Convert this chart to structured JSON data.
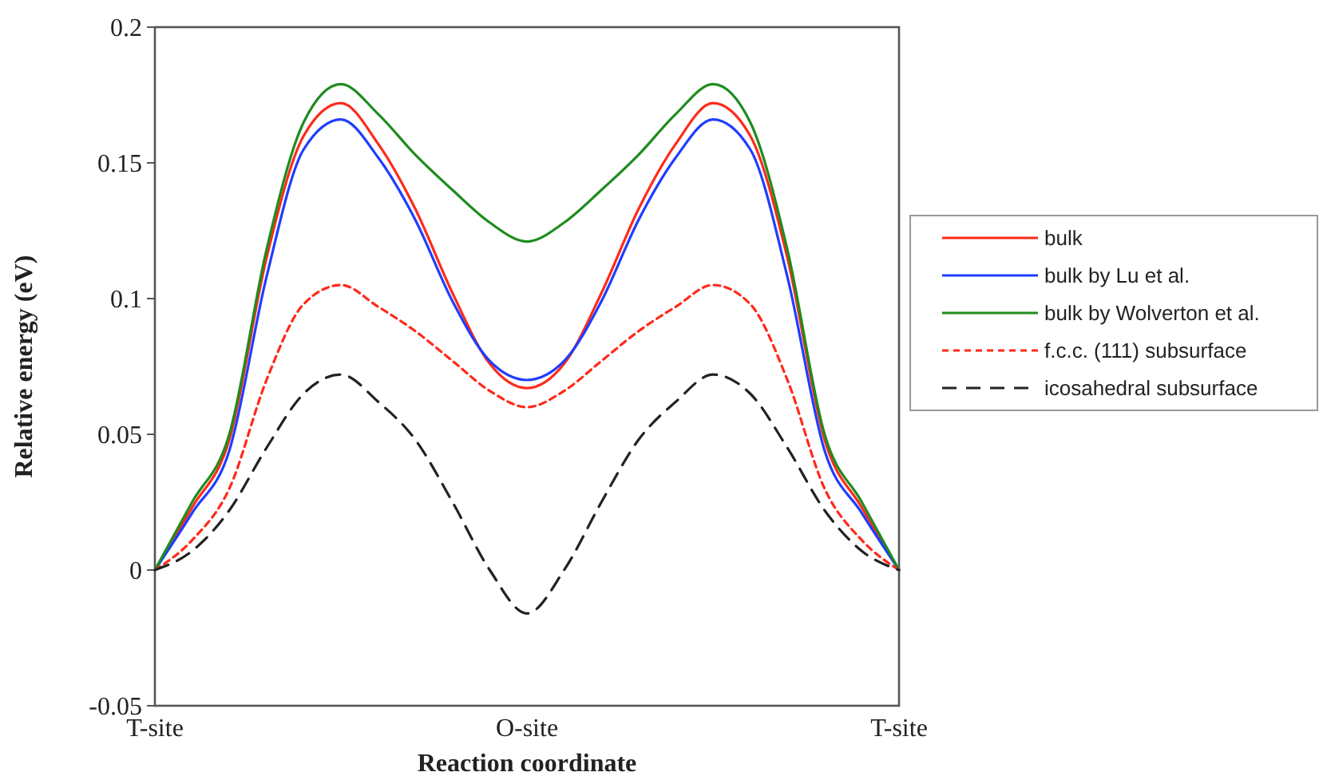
{
  "chart_data": {
    "type": "line",
    "xlabel": "Reaction coordinate",
    "ylabel": "Relative energy (eV)",
    "categories": [
      "T-site",
      null,
      null,
      null,
      null,
      null,
      null,
      null,
      null,
      null,
      "O-site",
      null,
      null,
      null,
      null,
      null,
      null,
      null,
      null,
      null,
      "T-site"
    ],
    "ylim": [
      -0.05,
      0.2
    ],
    "yticks": [
      -0.05,
      0,
      0.05,
      0.1,
      0.15,
      0.2
    ],
    "legend": "right",
    "marker": "none",
    "series": [
      {
        "name": "bulk",
        "color": "#ff2a1a",
        "line_style": "solid",
        "values": [
          0,
          0.023,
          0.048,
          0.115,
          0.16,
          0.172,
          0.157,
          0.133,
          0.102,
          0.076,
          0.067,
          0.076,
          0.102,
          0.133,
          0.157,
          0.172,
          0.16,
          0.115,
          0.048,
          0.023,
          0
        ]
      },
      {
        "name": "bulk by Lu et al.",
        "color": "#1f3dff",
        "line_style": "solid",
        "values": [
          0,
          0.021,
          0.044,
          0.108,
          0.155,
          0.166,
          0.152,
          0.129,
          0.099,
          0.077,
          0.07,
          0.077,
          0.099,
          0.129,
          0.152,
          0.166,
          0.155,
          0.108,
          0.044,
          0.021,
          0
        ]
      },
      {
        "name": "bulk by Wolverton et al.",
        "color": "#1e8c1e",
        "line_style": "solid",
        "values": [
          0,
          0.025,
          0.05,
          0.118,
          0.165,
          0.179,
          0.168,
          0.153,
          0.14,
          0.128,
          0.121,
          0.128,
          0.14,
          0.153,
          0.168,
          0.179,
          0.165,
          0.118,
          0.05,
          0.025,
          0
        ]
      },
      {
        "name": "f.c.c. (111) subsurface",
        "color": "#ff2a1a",
        "line_style": "dotted",
        "values": [
          0,
          0.011,
          0.03,
          0.07,
          0.098,
          0.105,
          0.097,
          0.088,
          0.077,
          0.066,
          0.06,
          0.066,
          0.077,
          0.088,
          0.097,
          0.105,
          0.098,
          0.07,
          0.03,
          0.011,
          0
        ]
      },
      {
        "name": "icosahedral subsurface",
        "color": "#222222",
        "line_style": "dashed",
        "values": [
          0,
          0.007,
          0.022,
          0.045,
          0.065,
          0.072,
          0.062,
          0.048,
          0.025,
          0,
          -0.016,
          0,
          0.025,
          0.048,
          0.062,
          0.072,
          0.065,
          0.045,
          0.022,
          0.007,
          0
        ]
      }
    ]
  }
}
